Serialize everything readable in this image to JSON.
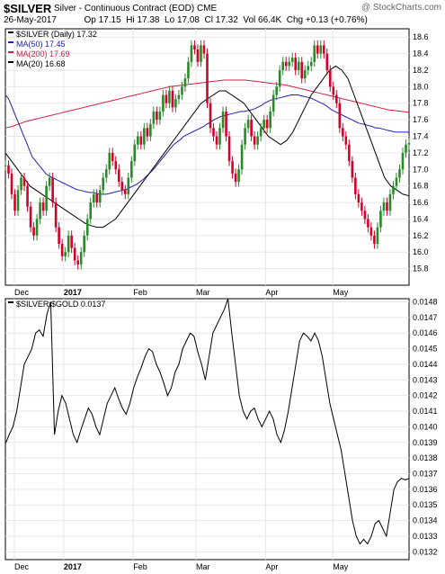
{
  "header": {
    "ticker": "$SILVER",
    "description": "Silver - Continuous Contract (EOD)",
    "exchange": "CME",
    "brand": "@ StockCharts.com",
    "date": "26-May-2017",
    "op_label": "Op",
    "op": "17.15",
    "hi_label": "Hi",
    "hi": "17.38",
    "lo_label": "Lo",
    "lo": "17.08",
    "cl_label": "Cl",
    "cl": "17.32",
    "vol_label": "Vol",
    "vol": "66.4K",
    "chg_label": "Chg",
    "chg": "+0.13 (+0.76%)"
  },
  "colors": {
    "up": "#2a8a2a",
    "down": "#d4002a",
    "ma50": "#2222aa",
    "ma200": "#cc2244",
    "ma20": "#000000",
    "grid": "#e6e6e6"
  },
  "chart_data": [
    {
      "type": "candlestick",
      "legend": [
        {
          "name": "$SILVER (Daily)",
          "value": "17.32",
          "color": "#000000"
        },
        {
          "name": "MA(50)",
          "value": "17.45",
          "color": "#2222aa"
        },
        {
          "name": "MA(200)",
          "value": "17.69",
          "color": "#cc2244"
        },
        {
          "name": "MA(20)",
          "value": "16.68",
          "color": "#000000"
        }
      ],
      "legend_position": "top-left",
      "ylim": [
        15.6,
        18.7
      ],
      "yticks": [
        15.8,
        16.0,
        16.2,
        16.4,
        16.6,
        16.8,
        17.0,
        17.2,
        17.4,
        17.6,
        17.8,
        18.0,
        18.2,
        18.4,
        18.6
      ],
      "y_axis_side": "right",
      "grid": true,
      "xticks": [
        "Dec",
        "2017",
        "Feb",
        "Mar",
        "Apr",
        "May"
      ],
      "x_tick_days": [
        0,
        22,
        53,
        81,
        112,
        142
      ],
      "close": [
        17.05,
        16.95,
        16.7,
        16.5,
        16.75,
        16.9,
        16.8,
        16.55,
        16.3,
        16.2,
        16.4,
        16.6,
        16.5,
        16.8,
        16.9,
        16.6,
        16.3,
        16.1,
        15.95,
        16.0,
        16.2,
        16.05,
        15.9,
        15.85,
        16.0,
        16.2,
        16.4,
        16.6,
        16.7,
        16.6,
        16.75,
        16.9,
        17.0,
        17.2,
        17.1,
        17.0,
        16.85,
        16.75,
        16.7,
        16.9,
        17.1,
        17.3,
        17.4,
        17.3,
        17.5,
        17.4,
        17.55,
        17.7,
        17.6,
        17.7,
        17.9,
        17.8,
        17.95,
        17.75,
        17.85,
        17.9,
        18.0,
        18.1,
        18.3,
        18.5,
        18.45,
        18.3,
        18.5,
        18.4,
        17.8,
        17.5,
        17.4,
        17.3,
        17.5,
        17.7,
        17.4,
        17.1,
        16.95,
        16.85,
        17.0,
        17.3,
        17.5,
        17.6,
        17.4,
        17.3,
        17.4,
        17.5,
        17.6,
        17.5,
        17.7,
        17.9,
        18.0,
        18.2,
        18.3,
        18.25,
        18.3,
        18.35,
        18.2,
        18.3,
        18.1,
        18.2,
        18.25,
        18.3,
        18.5,
        18.4,
        18.5,
        18.4,
        18.2,
        18.0,
        17.9,
        17.8,
        17.5,
        17.4,
        17.3,
        17.1,
        16.9,
        16.7,
        16.6,
        16.5,
        16.4,
        16.3,
        16.2,
        16.1,
        16.3,
        16.5,
        16.6,
        16.5,
        16.7,
        16.8,
        16.9,
        17.0,
        17.2,
        17.3,
        17.32
      ],
      "ma50": [
        17.9,
        17.85,
        17.75,
        17.65,
        17.55,
        17.45,
        17.35,
        17.25,
        17.15,
        17.1,
        17.05,
        17.0,
        16.95,
        16.92,
        16.9,
        16.88,
        16.86,
        16.84,
        16.82,
        16.8,
        16.78,
        16.76,
        16.75,
        16.74,
        16.73,
        16.72,
        16.72,
        16.71,
        16.7,
        16.7,
        16.7,
        16.71,
        16.72,
        16.73,
        16.74,
        16.75,
        16.76,
        16.78,
        16.8,
        16.82,
        16.85,
        16.88,
        16.92,
        16.96,
        17.0,
        17.05,
        17.1,
        17.15,
        17.2,
        17.25,
        17.3,
        17.33,
        17.36,
        17.4,
        17.42,
        17.44,
        17.46,
        17.48,
        17.5,
        17.52,
        17.55,
        17.57,
        17.6,
        17.62,
        17.64,
        17.65,
        17.66,
        17.67,
        17.68,
        17.69,
        17.7,
        17.7,
        17.71,
        17.72,
        17.73,
        17.75,
        17.77,
        17.8,
        17.82,
        17.84,
        17.85,
        17.86,
        17.87,
        17.88,
        17.89,
        17.9,
        17.9,
        17.9,
        17.89,
        17.88,
        17.87,
        17.86,
        17.84,
        17.82,
        17.8,
        17.78,
        17.75,
        17.72,
        17.7,
        17.68,
        17.66,
        17.64,
        17.62,
        17.6,
        17.58,
        17.56,
        17.55,
        17.54,
        17.53,
        17.52,
        17.5,
        17.5,
        17.49,
        17.48,
        17.47,
        17.46,
        17.45,
        17.45,
        17.45,
        17.45,
        17.45
      ],
      "ma200": [
        17.5,
        17.52,
        17.55,
        17.58,
        17.6,
        17.62,
        17.64,
        17.66,
        17.68,
        17.7,
        17.72,
        17.74,
        17.76,
        17.78,
        17.8,
        17.82,
        17.84,
        17.86,
        17.88,
        17.9,
        17.92,
        17.94,
        17.96,
        17.98,
        18.0,
        18.01,
        18.02,
        18.03,
        18.04,
        18.05,
        18.06,
        18.07,
        18.08,
        18.08,
        18.08,
        18.08,
        18.07,
        18.06,
        18.05,
        18.04,
        18.03,
        18.02,
        18.0,
        17.98,
        17.96,
        17.94,
        17.92,
        17.9,
        17.88,
        17.86,
        17.84,
        17.82,
        17.8,
        17.78,
        17.76,
        17.74,
        17.72,
        17.71,
        17.7,
        17.69
      ],
      "ma20": [
        17.2,
        17.1,
        17.0,
        16.9,
        16.8,
        16.75,
        16.7,
        16.65,
        16.6,
        16.55,
        16.5,
        16.45,
        16.4,
        16.35,
        16.32,
        16.3,
        16.3,
        16.35,
        16.4,
        16.5,
        16.6,
        16.7,
        16.8,
        16.9,
        17.0,
        17.1,
        17.2,
        17.3,
        17.4,
        17.5,
        17.6,
        17.7,
        17.8,
        17.85,
        17.9,
        17.95,
        17.95,
        17.9,
        17.85,
        17.8,
        17.7,
        17.6,
        17.5,
        17.4,
        17.35,
        17.3,
        17.35,
        17.45,
        17.6,
        17.75,
        17.9,
        18.0,
        18.1,
        18.2,
        18.25,
        18.2,
        18.1,
        17.9,
        17.7,
        17.5,
        17.3,
        17.1,
        16.9,
        16.8,
        16.75,
        16.7,
        16.68
      ]
    },
    {
      "type": "line",
      "legend": [
        {
          "name": "$SILVER:$GOLD",
          "value": "0.0137",
          "color": "#000000"
        }
      ],
      "legend_position": "top-left",
      "ylim": [
        0.01315,
        0.01482
      ],
      "yticks": [
        0.0132,
        0.0133,
        0.0134,
        0.0135,
        0.0136,
        0.0137,
        0.0138,
        0.0139,
        0.014,
        0.0141,
        0.0142,
        0.0143,
        0.0144,
        0.0145,
        0.0146,
        0.0147,
        0.0148
      ],
      "y_axis_side": "right",
      "grid": true,
      "xticks": [
        "Dec",
        "2017",
        "Feb",
        "Mar",
        "Apr",
        "May"
      ],
      "values": [
        0.01389,
        0.01395,
        0.014,
        0.0141,
        0.01425,
        0.0144,
        0.01445,
        0.0145,
        0.0146,
        0.01462,
        0.01458,
        0.01472,
        0.0148,
        0.01395,
        0.0141,
        0.0142,
        0.01415,
        0.01405,
        0.01395,
        0.0139,
        0.01398,
        0.01405,
        0.01412,
        0.01408,
        0.014,
        0.01395,
        0.01405,
        0.01415,
        0.0142,
        0.01425,
        0.01418,
        0.01412,
        0.01408,
        0.01415,
        0.01425,
        0.01432,
        0.01438,
        0.01445,
        0.0145,
        0.01448,
        0.0144,
        0.01435,
        0.01428,
        0.0142,
        0.01425,
        0.01435,
        0.0144,
        0.0145,
        0.01455,
        0.0146,
        0.01458,
        0.01448,
        0.0144,
        0.0143,
        0.01445,
        0.0146,
        0.01465,
        0.0147,
        0.01475,
        0.01482,
        0.0146,
        0.0144,
        0.0142,
        0.0141,
        0.01405,
        0.0141,
        0.01412,
        0.01405,
        0.014,
        0.01405,
        0.0141,
        0.01405,
        0.01395,
        0.0139,
        0.01398,
        0.0141,
        0.01425,
        0.0144,
        0.01455,
        0.0146,
        0.01458,
        0.01455,
        0.0146,
        0.01455,
        0.01445,
        0.0143,
        0.01415,
        0.01405,
        0.01395,
        0.01385,
        0.0137,
        0.01355,
        0.0134,
        0.0133,
        0.01325,
        0.01328,
        0.01325,
        0.0133,
        0.01338,
        0.0134,
        0.01335,
        0.0133,
        0.01345,
        0.0136,
        0.01365,
        0.01367,
        0.01366,
        0.01367
      ]
    }
  ]
}
